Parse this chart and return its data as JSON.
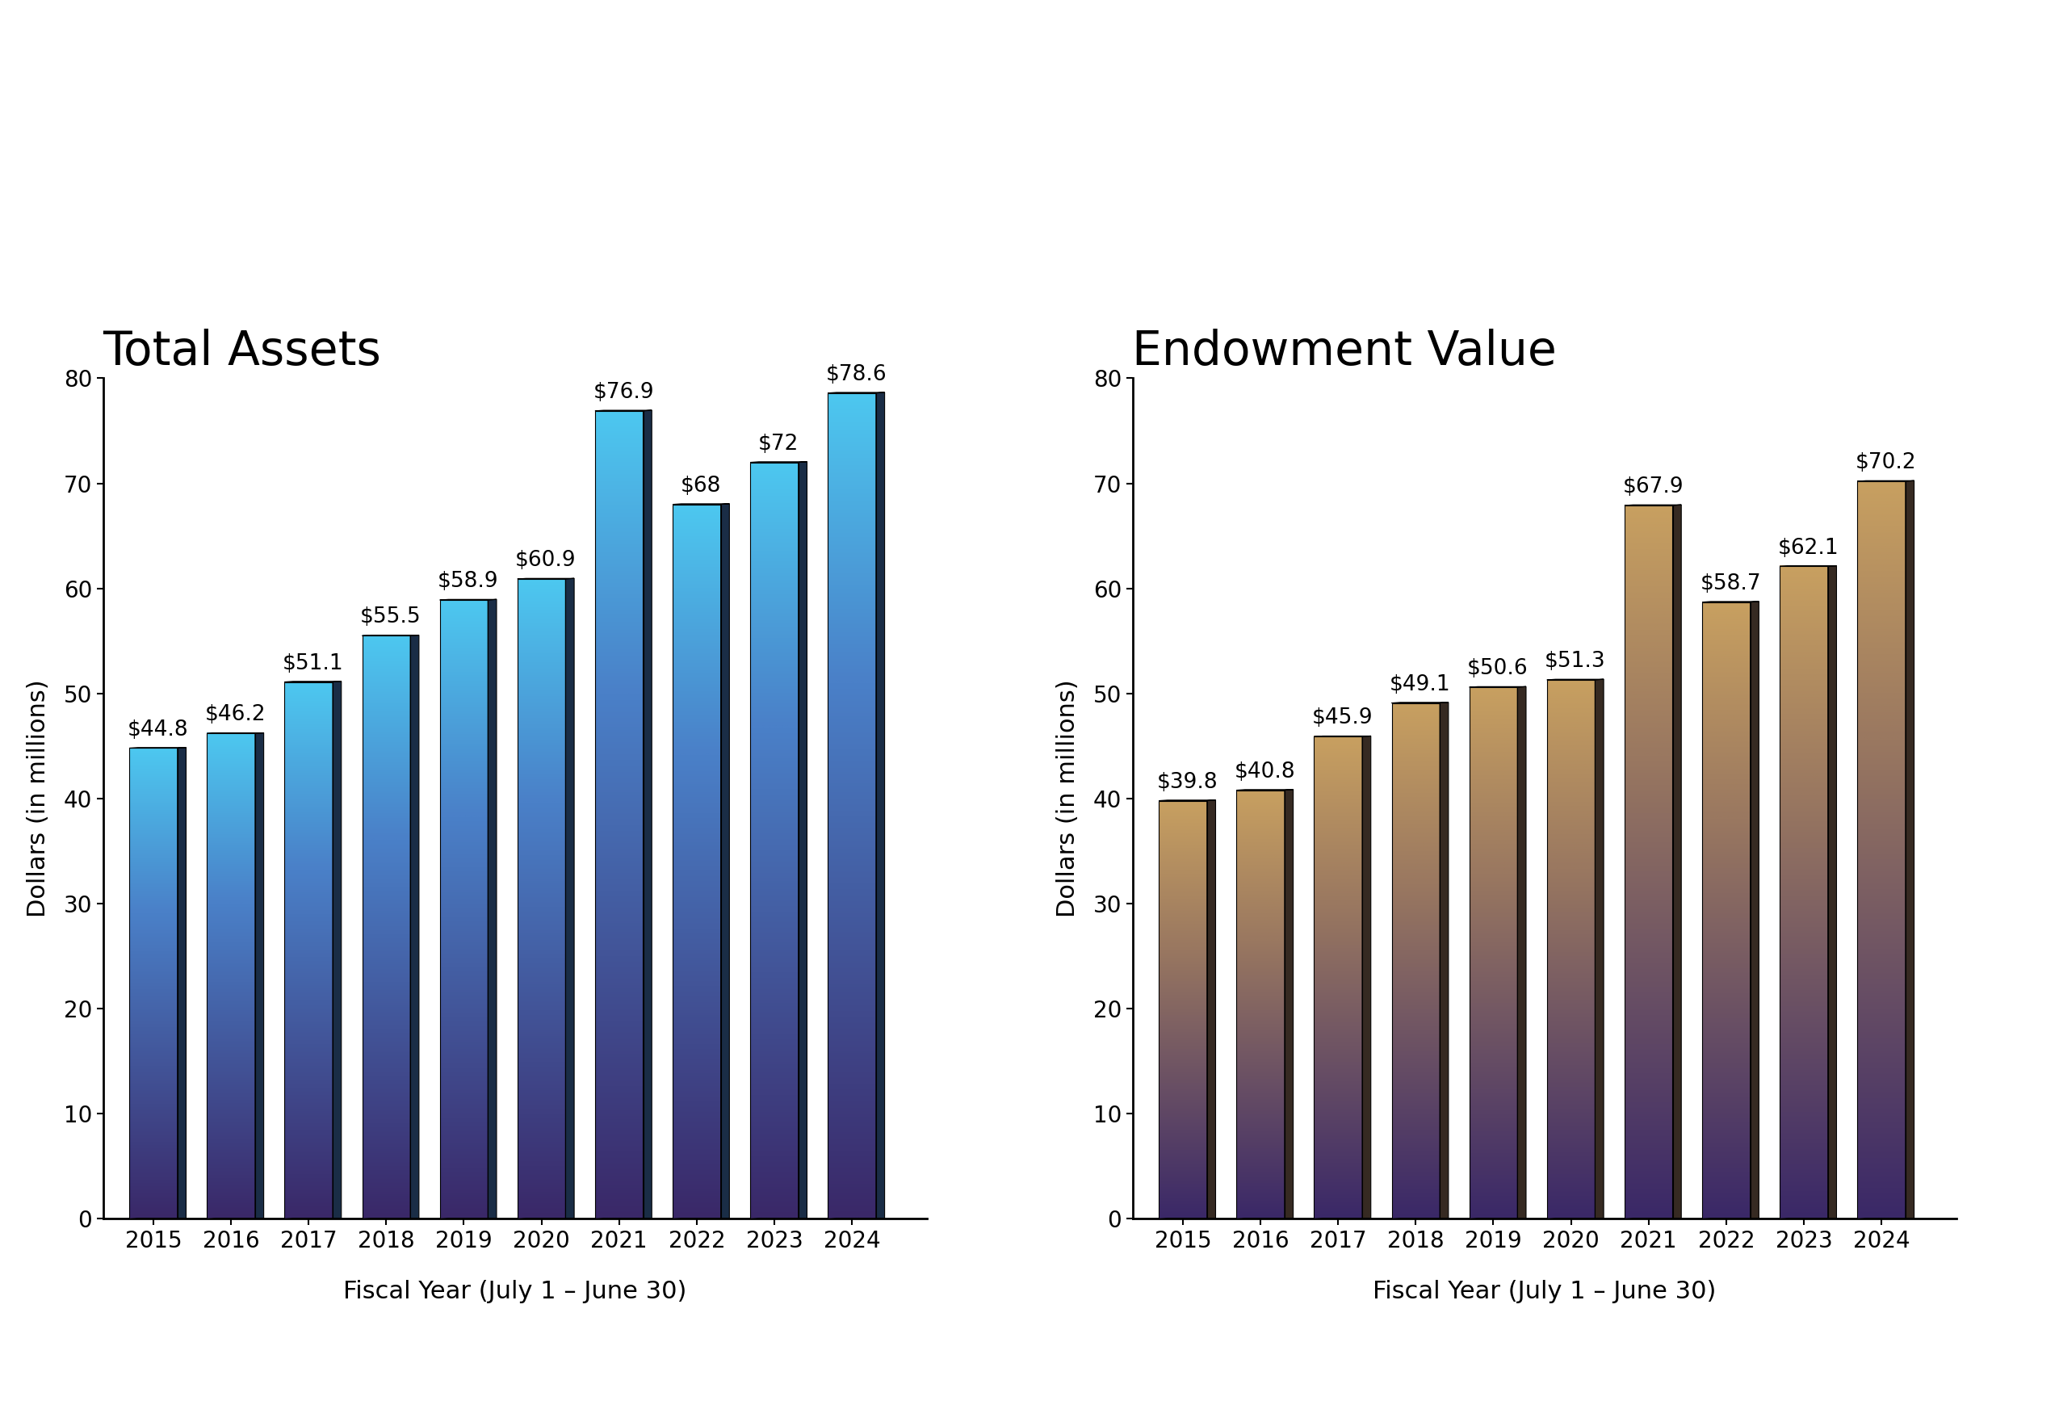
{
  "assets_years": [
    "2015",
    "2016",
    "2017",
    "2018",
    "2019",
    "2020",
    "2021",
    "2022",
    "2023",
    "2024"
  ],
  "assets_values": [
    44.8,
    46.2,
    51.1,
    55.5,
    58.9,
    60.9,
    76.9,
    68.0,
    72.0,
    78.6
  ],
  "assets_labels": [
    "$44.8",
    "$46.2",
    "$51.1",
    "$55.5",
    "$58.9",
    "$60.9",
    "$76.9",
    "$68",
    "$72",
    "$78.6"
  ],
  "assets_title": "Total Assets",
  "assets_ylabel": "Dollars (in millions)",
  "assets_xlabel": "Fiscal Year (July 1 – June 30)",
  "endow_years": [
    "2015",
    "2016",
    "2017",
    "2018",
    "2019",
    "2020",
    "2021",
    "2022",
    "2023",
    "2024"
  ],
  "endow_values": [
    39.8,
    40.8,
    45.9,
    49.1,
    50.6,
    51.3,
    67.9,
    58.7,
    62.1,
    70.2
  ],
  "endow_labels": [
    "$39.8",
    "$40.8",
    "$45.9",
    "$49.1",
    "$50.6",
    "$51.3",
    "$67.9",
    "$58.7",
    "$62.1",
    "$70.2"
  ],
  "endow_title": "Endowment Value",
  "endow_ylabel": "Dollars (in millions)",
  "endow_xlabel": "Fiscal Year (July 1 – June 30)",
  "ylim": [
    0,
    80
  ],
  "yticks": [
    0,
    10,
    20,
    30,
    40,
    50,
    60,
    70,
    80
  ],
  "assets_top_color": "#4DC8F0",
  "assets_mid_color": "#4A80C8",
  "assets_bottom_color": "#3A2868",
  "endow_top_color": "#C8A060",
  "endow_mid_color": "#9A7860",
  "endow_bottom_color": "#3A2868",
  "cap_color_assets": "#A8B8C8",
  "cap_color_endow": "#A89878",
  "shadow_color": "#1A1030",
  "bg_color": "#FFFFFF",
  "label_fontsize": 22,
  "title_fontsize": 42,
  "tick_fontsize": 20,
  "xlabel_fontsize": 22,
  "annotation_fontsize": 19
}
